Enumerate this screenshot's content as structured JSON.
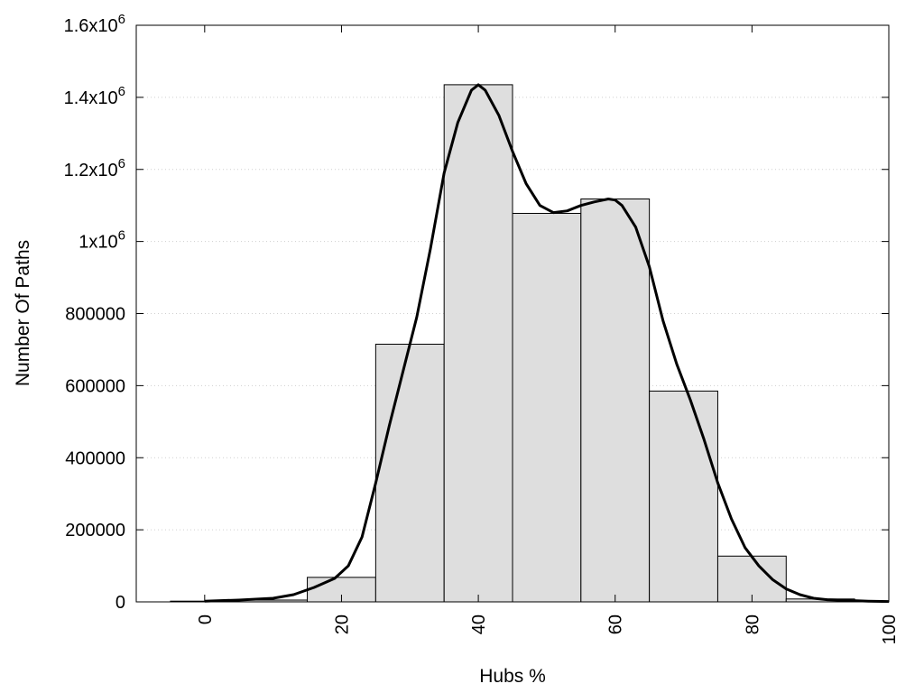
{
  "chart_data": {
    "type": "bar",
    "xlabel": "Hubs %",
    "ylabel": "Number Of Paths",
    "xlim": [
      -10,
      100
    ],
    "ylim": [
      0,
      1600000
    ],
    "x_ticks": [
      {
        "value": 0,
        "label": "0"
      },
      {
        "value": 20,
        "label": "20"
      },
      {
        "value": 40,
        "label": "40"
      },
      {
        "value": 60,
        "label": "60"
      },
      {
        "value": 80,
        "label": "80"
      },
      {
        "value": 100,
        "label": "100"
      }
    ],
    "y_ticks": [
      {
        "value": 0,
        "base": "0",
        "exp": ""
      },
      {
        "value": 200000,
        "base": "200000",
        "exp": ""
      },
      {
        "value": 400000,
        "base": "400000",
        "exp": ""
      },
      {
        "value": 600000,
        "base": "600000",
        "exp": ""
      },
      {
        "value": 800000,
        "base": "800000",
        "exp": ""
      },
      {
        "value": 1000000,
        "base": "1x10",
        "exp": "6"
      },
      {
        "value": 1200000,
        "base": "1.2x10",
        "exp": "6"
      },
      {
        "value": 1400000,
        "base": "1.4x10",
        "exp": "6"
      },
      {
        "value": 1600000,
        "base": "1.6x10",
        "exp": "6"
      }
    ],
    "grid": true,
    "bin_width": 10,
    "bars": [
      {
        "x": 0,
        "value": 2000
      },
      {
        "x": 10,
        "value": 5000
      },
      {
        "x": 20,
        "value": 68000
      },
      {
        "x": 30,
        "value": 715000
      },
      {
        "x": 40,
        "value": 1435000
      },
      {
        "x": 50,
        "value": 1078000
      },
      {
        "x": 60,
        "value": 1118000
      },
      {
        "x": 70,
        "value": 585000
      },
      {
        "x": 80,
        "value": 127000
      },
      {
        "x": 90,
        "value": 8000
      }
    ],
    "density_curve": {
      "x": [
        0,
        5,
        10,
        13,
        16,
        19,
        21,
        23,
        25,
        27,
        29,
        31,
        33,
        35,
        37,
        39,
        40,
        41,
        43,
        45,
        47,
        49,
        51,
        53,
        55,
        57,
        59,
        60,
        61,
        63,
        65,
        67,
        69,
        71,
        73,
        75,
        77,
        79,
        81,
        83,
        85,
        87,
        89,
        91,
        94,
        97,
        100
      ],
      "y": [
        2000,
        5000,
        10000,
        20000,
        40000,
        65000,
        100000,
        180000,
        330000,
        490000,
        640000,
        790000,
        980000,
        1190000,
        1330000,
        1420000,
        1435000,
        1420000,
        1350000,
        1250000,
        1160000,
        1100000,
        1080000,
        1085000,
        1100000,
        1110000,
        1118000,
        1115000,
        1100000,
        1040000,
        930000,
        780000,
        660000,
        560000,
        450000,
        330000,
        230000,
        150000,
        100000,
        62000,
        36000,
        20000,
        10000,
        6000,
        4000,
        2000,
        1000
      ]
    }
  }
}
